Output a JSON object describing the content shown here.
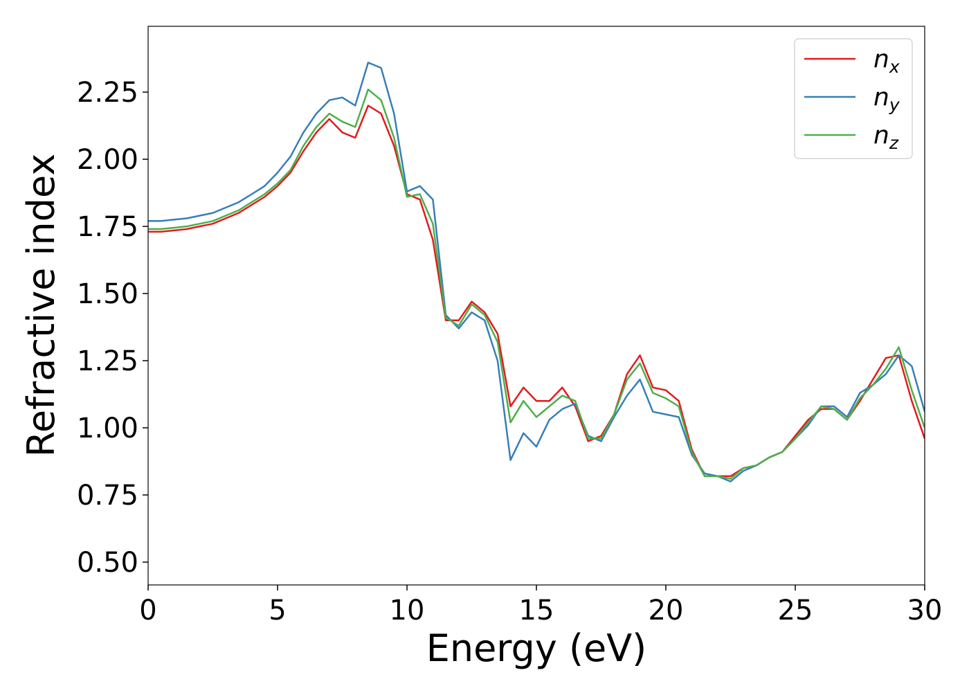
{
  "chart_data": {
    "type": "line",
    "x_label": "Energy (eV)",
    "y_label": "Refractive index",
    "x": [
      0,
      0.5,
      1,
      1.5,
      2,
      2.5,
      3,
      3.5,
      4,
      4.5,
      5,
      5.5,
      6,
      6.5,
      7,
      7.5,
      8,
      8.5,
      9,
      9.5,
      10,
      10.5,
      11,
      11.5,
      12,
      12.5,
      13,
      13.5,
      14,
      14.5,
      15,
      15.5,
      16,
      16.5,
      17,
      17.5,
      18,
      18.5,
      19,
      19.5,
      20,
      20.5,
      21,
      21.5,
      22,
      22.5,
      23,
      23.5,
      24,
      24.5,
      25,
      25.5,
      26,
      26.5,
      27,
      27.5,
      28,
      28.5,
      29,
      29.5,
      30
    ],
    "series": [
      {
        "name": "nx",
        "color": "#e41a1c",
        "values": [
          1.73,
          1.73,
          1.735,
          1.74,
          1.75,
          1.76,
          1.78,
          1.8,
          1.83,
          1.86,
          1.9,
          1.95,
          2.03,
          2.1,
          2.15,
          2.1,
          2.08,
          2.2,
          2.17,
          2.05,
          1.87,
          1.85,
          1.7,
          1.4,
          1.4,
          1.47,
          1.43,
          1.35,
          1.08,
          1.15,
          1.1,
          1.1,
          1.15,
          1.08,
          0.95,
          0.97,
          1.05,
          1.2,
          1.27,
          1.15,
          1.14,
          1.1,
          0.92,
          0.82,
          0.82,
          0.82,
          0.85,
          0.86,
          0.89,
          0.91,
          0.97,
          1.03,
          1.07,
          1.07,
          1.03,
          1.1,
          1.18,
          1.26,
          1.27,
          1.1,
          0.96
        ]
      },
      {
        "name": "ny",
        "color": "#377eb8",
        "values": [
          1.77,
          1.77,
          1.775,
          1.78,
          1.79,
          1.8,
          1.82,
          1.84,
          1.87,
          1.9,
          1.95,
          2.01,
          2.1,
          2.17,
          2.22,
          2.23,
          2.2,
          2.36,
          2.34,
          2.17,
          1.88,
          1.9,
          1.85,
          1.42,
          1.37,
          1.43,
          1.4,
          1.25,
          0.88,
          0.98,
          0.93,
          1.03,
          1.07,
          1.09,
          0.97,
          0.95,
          1.04,
          1.12,
          1.18,
          1.06,
          1.05,
          1.04,
          0.9,
          0.83,
          0.82,
          0.8,
          0.84,
          0.86,
          0.89,
          0.91,
          0.96,
          1.01,
          1.08,
          1.08,
          1.04,
          1.13,
          1.16,
          1.2,
          1.27,
          1.23,
          1.06
        ]
      },
      {
        "name": "nz",
        "color": "#4daf4a",
        "values": [
          1.74,
          1.74,
          1.745,
          1.75,
          1.76,
          1.77,
          1.79,
          1.81,
          1.84,
          1.87,
          1.91,
          1.96,
          2.05,
          2.12,
          2.17,
          2.14,
          2.12,
          2.26,
          2.22,
          2.08,
          1.86,
          1.87,
          1.76,
          1.41,
          1.38,
          1.46,
          1.42,
          1.32,
          1.02,
          1.1,
          1.04,
          1.08,
          1.12,
          1.1,
          0.96,
          0.96,
          1.05,
          1.18,
          1.24,
          1.13,
          1.11,
          1.08,
          0.91,
          0.82,
          0.82,
          0.81,
          0.85,
          0.86,
          0.89,
          0.91,
          0.96,
          1.02,
          1.08,
          1.07,
          1.03,
          1.11,
          1.16,
          1.22,
          1.3,
          1.14,
          1.0
        ]
      }
    ],
    "xlim": [
      0,
      30
    ],
    "xticks": [
      0,
      5,
      10,
      15,
      20,
      25,
      30
    ],
    "ylim": [
      0.415,
      2.495
    ],
    "yticks": [
      {
        "value": 0.5,
        "label": "0.50"
      },
      0.75,
      {
        "value": 1,
        "label": "1.00"
      },
      1.25,
      {
        "value": 1.5,
        "label": "1.50"
      },
      1.75,
      {
        "value": 2,
        "label": "2.00"
      },
      2.25
    ],
    "grid": false,
    "legend": "upper right"
  }
}
